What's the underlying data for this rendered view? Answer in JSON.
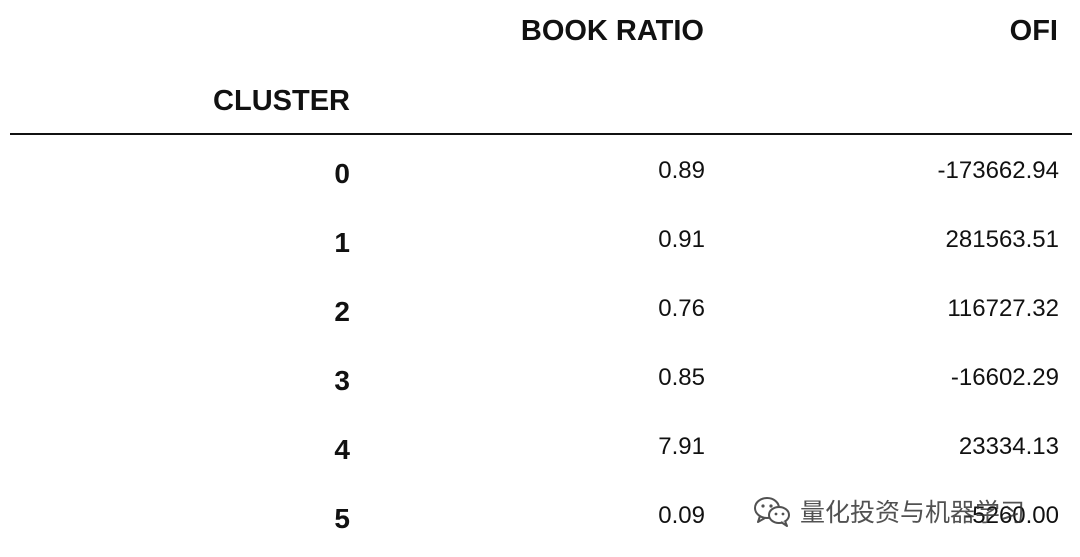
{
  "table": {
    "columns": {
      "index_header": "CLUSTER",
      "book_ratio_header": "BOOK RATIO",
      "ofi_header": "OFI"
    },
    "rows": [
      {
        "cluster": "0",
        "book_ratio": "0.89",
        "ofi": "-173662.94"
      },
      {
        "cluster": "1",
        "book_ratio": "0.91",
        "ofi": "281563.51"
      },
      {
        "cluster": "2",
        "book_ratio": "0.76",
        "ofi": "116727.32"
      },
      {
        "cluster": "3",
        "book_ratio": "0.85",
        "ofi": "-16602.29"
      },
      {
        "cluster": "4",
        "book_ratio": "7.91",
        "ofi": "23334.13"
      },
      {
        "cluster": "5",
        "book_ratio": "0.09",
        "ofi": "-5260.00"
      }
    ]
  },
  "watermark": {
    "text": "量化投资与机器学习",
    "icon": "wechat-icon"
  }
}
